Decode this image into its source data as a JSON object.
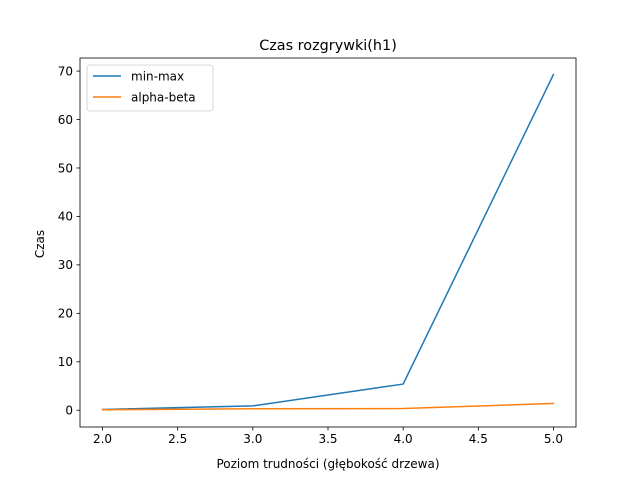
{
  "chart_data": {
    "type": "line",
    "title": "Czas rozgrywki(h1)",
    "xlabel": "Poziom trudności (głębokość drzewa)",
    "ylabel": "Czas",
    "xlim": [
      1.85,
      5.15
    ],
    "ylim": [
      -3.46,
      72.7
    ],
    "x_ticks": [
      2.0,
      2.5,
      3.0,
      3.5,
      4.0,
      4.5,
      5.0
    ],
    "x_tick_labels": [
      "2.0",
      "2.5",
      "3.0",
      "3.5",
      "4.0",
      "4.5",
      "5.0"
    ],
    "y_ticks": [
      0,
      10,
      20,
      30,
      40,
      50,
      60,
      70
    ],
    "y_tick_labels": [
      "0",
      "10",
      "20",
      "30",
      "40",
      "50",
      "60",
      "70"
    ],
    "grid": false,
    "legend_position": "top-left",
    "x": [
      2,
      3,
      4,
      5
    ],
    "series": [
      {
        "name": "min-max",
        "color": "#1f77b4",
        "values": [
          0.15,
          0.9,
          5.4,
          69.3
        ]
      },
      {
        "name": "alpha-beta",
        "color": "#ff7f0e",
        "values": [
          0.1,
          0.3,
          0.35,
          1.4
        ]
      }
    ]
  }
}
